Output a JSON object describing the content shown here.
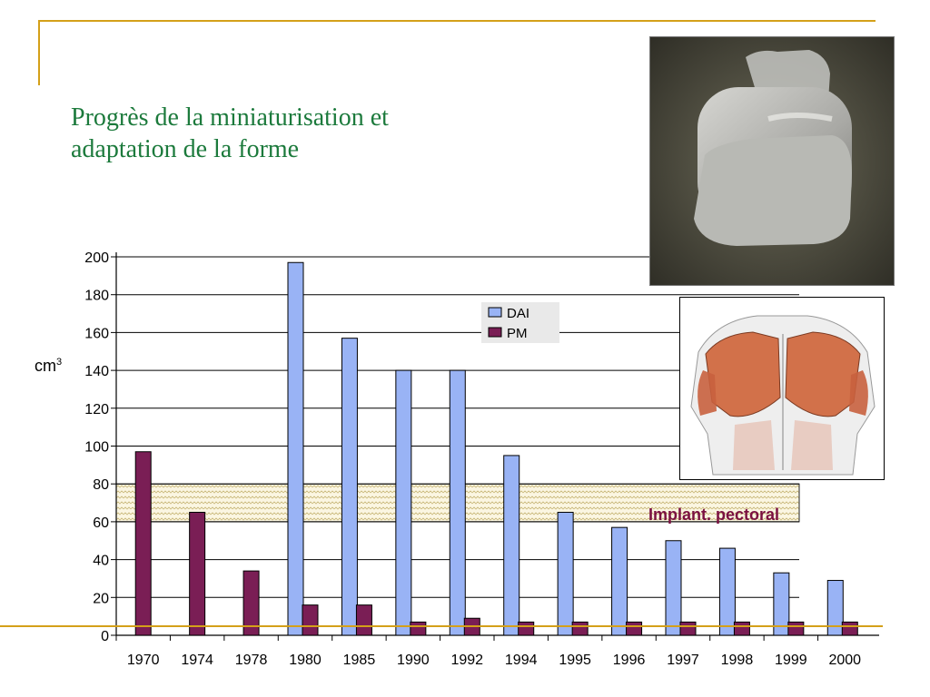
{
  "slide": {
    "title_line1": "Progrès de la miniaturisation et",
    "title_line2": "adaptation de la forme",
    "colors": {
      "title": "#1c7a3c",
      "accent_lines": "#d4a019",
      "pectoral_text": "#7a1040"
    }
  },
  "images": {
    "device_photo": "defibrillator-device-photo",
    "anatomy": "pectoral-muscle-anatomy-illustration"
  },
  "chart_data": {
    "type": "bar",
    "categories": [
      "1970",
      "1974",
      "1978",
      "1980",
      "1985",
      "1990",
      "1992",
      "1994",
      "1995",
      "1996",
      "1997",
      "1998",
      "1999",
      "2000"
    ],
    "series": [
      {
        "name": "DAI",
        "color": "#99b3f5",
        "values": [
          null,
          null,
          null,
          197,
          157,
          140,
          140,
          95,
          65,
          57,
          50,
          46,
          33,
          29
        ]
      },
      {
        "name": "PM",
        "color": "#7a1e55",
        "values": [
          97,
          65,
          34,
          16,
          16,
          7,
          9,
          7,
          7,
          7,
          7,
          7,
          7,
          7
        ]
      }
    ],
    "ylabel_base": "cm",
    "ylabel_sup": "3",
    "ylim": [
      0,
      200
    ],
    "yticks": [
      0,
      20,
      40,
      60,
      80,
      100,
      120,
      140,
      160,
      180,
      200
    ],
    "grid": true,
    "legend_placement": "top-center",
    "annotation": {
      "text": "Implant. pectoral",
      "range": [
        60,
        80
      ]
    }
  }
}
